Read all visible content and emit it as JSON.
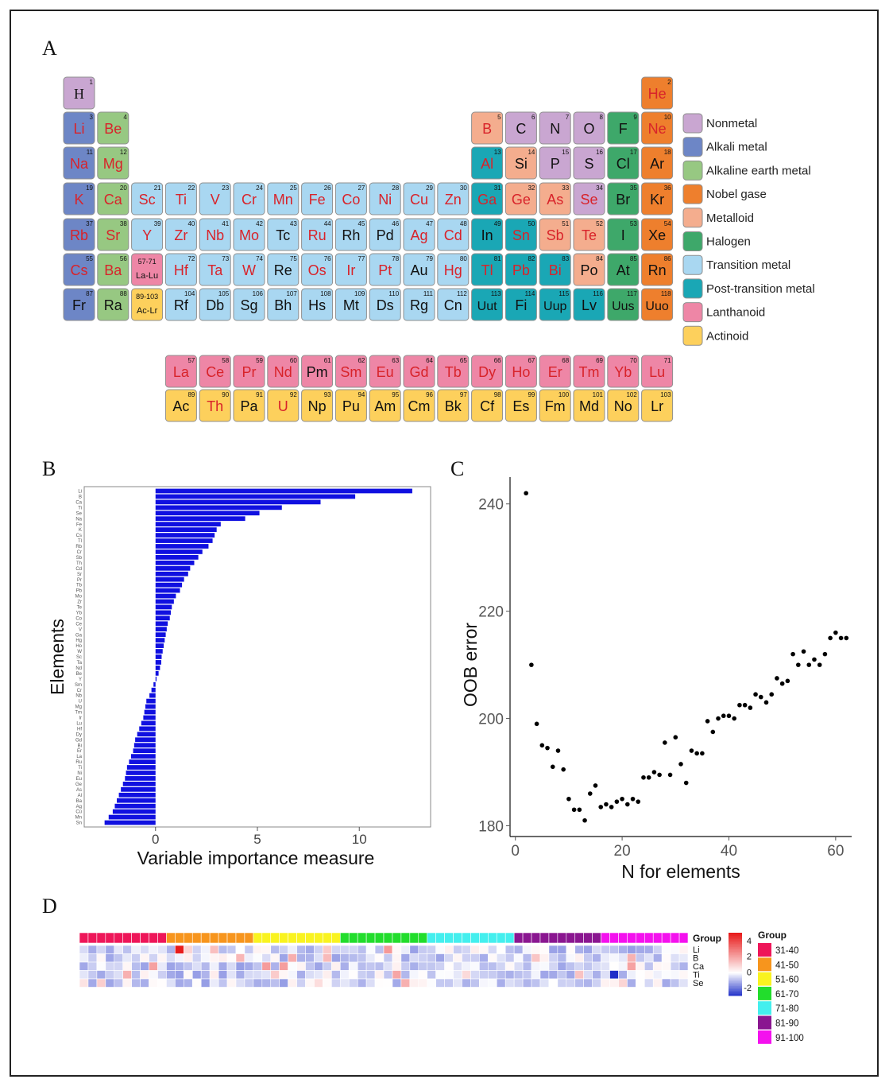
{
  "panels": {
    "a": "A",
    "b": "B",
    "c": "C",
    "d": "D"
  },
  "periodic_table": {
    "categories": [
      {
        "key": "nonmetal",
        "label": "Nonmetal",
        "color": "#c9a6d1"
      },
      {
        "key": "alkali",
        "label": "Alkali metal",
        "color": "#6d86c6"
      },
      {
        "key": "alkaline",
        "label": "Alkaline earth metal",
        "color": "#97c882"
      },
      {
        "key": "noble",
        "label": "Nobel gase",
        "color": "#ee7f2d"
      },
      {
        "key": "metalloid",
        "label": "Metalloid",
        "color": "#f4ad8e"
      },
      {
        "key": "halogen",
        "label": "Halogen",
        "color": "#3ea86a"
      },
      {
        "key": "transition",
        "label": "Transition metal",
        "color": "#a9d7f1"
      },
      {
        "key": "post",
        "label": "Post-transition metal",
        "color": "#1aa7b5"
      },
      {
        "key": "lanthanoid",
        "label": "Lanthanoid",
        "color": "#ee86a6"
      },
      {
        "key": "actinoid",
        "label": "Actinoid",
        "color": "#fdd05c"
      }
    ],
    "colors": {
      "nonmetal": "#c9a6d1",
      "alkali": "#6d86c6",
      "alkaline": "#97c882",
      "noble": "#ee7f2d",
      "metalloid": "#f4ad8e",
      "halogen": "#3ea86a",
      "transition": "#a9d7f1",
      "post": "#1aa7b5",
      "lanthanoid": "#ee86a6",
      "actinoid": "#fdd05c"
    },
    "elements": [
      [
        "H",
        "1",
        1,
        1,
        "nonmetal",
        0
      ],
      [
        "He",
        "2",
        1,
        18,
        "noble",
        1
      ],
      [
        "Li",
        "3",
        2,
        1,
        "alkali",
        1
      ],
      [
        "Be",
        "4",
        2,
        2,
        "alkaline",
        1
      ],
      [
        "B",
        "5",
        2,
        13,
        "metalloid",
        1
      ],
      [
        "C",
        "6",
        2,
        14,
        "nonmetal",
        0
      ],
      [
        "N",
        "7",
        2,
        15,
        "nonmetal",
        0
      ],
      [
        "O",
        "8",
        2,
        16,
        "nonmetal",
        0
      ],
      [
        "F",
        "9",
        2,
        17,
        "halogen",
        0
      ],
      [
        "Ne",
        "10",
        2,
        18,
        "noble",
        1
      ],
      [
        "Na",
        "11",
        3,
        1,
        "alkali",
        1
      ],
      [
        "Mg",
        "12",
        3,
        2,
        "alkaline",
        1
      ],
      [
        "Al",
        "13",
        3,
        13,
        "post",
        1
      ],
      [
        "Si",
        "14",
        3,
        14,
        "metalloid",
        0
      ],
      [
        "P",
        "15",
        3,
        15,
        "nonmetal",
        0
      ],
      [
        "S",
        "16",
        3,
        16,
        "nonmetal",
        0
      ],
      [
        "Cl",
        "17",
        3,
        17,
        "halogen",
        0
      ],
      [
        "Ar",
        "18",
        3,
        18,
        "noble",
        0
      ],
      [
        "K",
        "19",
        4,
        1,
        "alkali",
        1
      ],
      [
        "Ca",
        "20",
        4,
        2,
        "alkaline",
        1
      ],
      [
        "Sc",
        "21",
        4,
        3,
        "transition",
        1
      ],
      [
        "Ti",
        "22",
        4,
        4,
        "transition",
        1
      ],
      [
        "V",
        "23",
        4,
        5,
        "transition",
        1
      ],
      [
        "Cr",
        "24",
        4,
        6,
        "transition",
        1
      ],
      [
        "Mn",
        "25",
        4,
        7,
        "transition",
        1
      ],
      [
        "Fe",
        "26",
        4,
        8,
        "transition",
        1
      ],
      [
        "Co",
        "27",
        4,
        9,
        "transition",
        1
      ],
      [
        "Ni",
        "28",
        4,
        10,
        "transition",
        1
      ],
      [
        "Cu",
        "29",
        4,
        11,
        "transition",
        1
      ],
      [
        "Zn",
        "30",
        4,
        12,
        "transition",
        1
      ],
      [
        "Ga",
        "31",
        4,
        13,
        "post",
        1
      ],
      [
        "Ge",
        "32",
        4,
        14,
        "metalloid",
        1
      ],
      [
        "As",
        "33",
        4,
        15,
        "metalloid",
        1
      ],
      [
        "Se",
        "34",
        4,
        16,
        "nonmetal",
        1
      ],
      [
        "Br",
        "35",
        4,
        17,
        "halogen",
        0
      ],
      [
        "Kr",
        "36",
        4,
        18,
        "noble",
        0
      ],
      [
        "Rb",
        "37",
        5,
        1,
        "alkali",
        1
      ],
      [
        "Sr",
        "38",
        5,
        2,
        "alkaline",
        1
      ],
      [
        "Y",
        "39",
        5,
        3,
        "transition",
        1
      ],
      [
        "Zr",
        "40",
        5,
        4,
        "transition",
        1
      ],
      [
        "Nb",
        "41",
        5,
        5,
        "transition",
        1
      ],
      [
        "Mo",
        "42",
        5,
        6,
        "transition",
        1
      ],
      [
        "Tc",
        "43",
        5,
        7,
        "transition",
        0
      ],
      [
        "Ru",
        "44",
        5,
        8,
        "transition",
        1
      ],
      [
        "Rh",
        "45",
        5,
        9,
        "transition",
        0
      ],
      [
        "Pd",
        "46",
        5,
        10,
        "transition",
        0
      ],
      [
        "Ag",
        "47",
        5,
        11,
        "transition",
        1
      ],
      [
        "Cd",
        "48",
        5,
        12,
        "transition",
        1
      ],
      [
        "In",
        "49",
        5,
        13,
        "post",
        0
      ],
      [
        "Sn",
        "50",
        5,
        14,
        "post",
        1
      ],
      [
        "Sb",
        "51",
        5,
        15,
        "metalloid",
        1
      ],
      [
        "Te",
        "52",
        5,
        16,
        "metalloid",
        1
      ],
      [
        "I",
        "53",
        5,
        17,
        "halogen",
        0
      ],
      [
        "Xe",
        "54",
        5,
        18,
        "noble",
        0
      ],
      [
        "Cs",
        "55",
        6,
        1,
        "alkali",
        1
      ],
      [
        "Ba",
        "56",
        6,
        2,
        "alkaline",
        1
      ],
      [
        "La-Lu",
        "57-71",
        6,
        3,
        "lanthanoid",
        0
      ],
      [
        "Hf",
        "72",
        6,
        4,
        "transition",
        1
      ],
      [
        "Ta",
        "73",
        6,
        5,
        "transition",
        1
      ],
      [
        "W",
        "74",
        6,
        6,
        "transition",
        1
      ],
      [
        "Re",
        "75",
        6,
        7,
        "transition",
        0
      ],
      [
        "Os",
        "76",
        6,
        8,
        "transition",
        1
      ],
      [
        "Ir",
        "77",
        6,
        9,
        "transition",
        1
      ],
      [
        "Pt",
        "78",
        6,
        10,
        "transition",
        1
      ],
      [
        "Au",
        "79",
        6,
        11,
        "transition",
        0
      ],
      [
        "Hg",
        "80",
        6,
        12,
        "transition",
        1
      ],
      [
        "Tl",
        "81",
        6,
        13,
        "post",
        1
      ],
      [
        "Pb",
        "82",
        6,
        14,
        "post",
        1
      ],
      [
        "Bi",
        "83",
        6,
        15,
        "post",
        1
      ],
      [
        "Po",
        "84",
        6,
        16,
        "metalloid",
        0
      ],
      [
        "At",
        "85",
        6,
        17,
        "halogen",
        0
      ],
      [
        "Rn",
        "86",
        6,
        18,
        "noble",
        0
      ],
      [
        "Fr",
        "87",
        7,
        1,
        "alkali",
        0
      ],
      [
        "Ra",
        "88",
        7,
        2,
        "alkaline",
        0
      ],
      [
        "Ac-Lr",
        "89-103",
        7,
        3,
        "actinoid",
        0
      ],
      [
        "Rf",
        "104",
        7,
        4,
        "transition",
        0
      ],
      [
        "Db",
        "105",
        7,
        5,
        "transition",
        0
      ],
      [
        "Sg",
        "106",
        7,
        6,
        "transition",
        0
      ],
      [
        "Bh",
        "107",
        7,
        7,
        "transition",
        0
      ],
      [
        "Hs",
        "108",
        7,
        8,
        "transition",
        0
      ],
      [
        "Mt",
        "109",
        7,
        9,
        "transition",
        0
      ],
      [
        "Ds",
        "110",
        7,
        10,
        "transition",
        0
      ],
      [
        "Rg",
        "111",
        7,
        11,
        "transition",
        0
      ],
      [
        "Cn",
        "112",
        7,
        12,
        "transition",
        0
      ],
      [
        "Uut",
        "113",
        7,
        13,
        "post",
        0
      ],
      [
        "Fi",
        "114",
        7,
        14,
        "post",
        0
      ],
      [
        "Uup",
        "115",
        7,
        15,
        "post",
        0
      ],
      [
        "Lv",
        "116",
        7,
        16,
        "post",
        0
      ],
      [
        "Uus",
        "117",
        7,
        17,
        "halogen",
        0
      ],
      [
        "Uuo",
        "118",
        7,
        18,
        "noble",
        0
      ],
      [
        "La",
        "57",
        8,
        4,
        "lanthanoid",
        1
      ],
      [
        "Ce",
        "58",
        8,
        5,
        "lanthanoid",
        1
      ],
      [
        "Pr",
        "59",
        8,
        6,
        "lanthanoid",
        1
      ],
      [
        "Nd",
        "60",
        8,
        7,
        "lanthanoid",
        1
      ],
      [
        "Pm",
        "61",
        8,
        8,
        "lanthanoid",
        0
      ],
      [
        "Sm",
        "62",
        8,
        9,
        "lanthanoid",
        1
      ],
      [
        "Eu",
        "63",
        8,
        10,
        "lanthanoid",
        1
      ],
      [
        "Gd",
        "64",
        8,
        11,
        "lanthanoid",
        1
      ],
      [
        "Tb",
        "65",
        8,
        12,
        "lanthanoid",
        1
      ],
      [
        "Dy",
        "66",
        8,
        13,
        "lanthanoid",
        1
      ],
      [
        "Ho",
        "67",
        8,
        14,
        "lanthanoid",
        1
      ],
      [
        "Er",
        "68",
        8,
        15,
        "lanthanoid",
        1
      ],
      [
        "Tm",
        "69",
        8,
        16,
        "lanthanoid",
        1
      ],
      [
        "Yb",
        "70",
        8,
        17,
        "lanthanoid",
        1
      ],
      [
        "Lu",
        "71",
        8,
        18,
        "lanthanoid",
        1
      ],
      [
        "Ac",
        "89",
        9,
        4,
        "actinoid",
        0
      ],
      [
        "Th",
        "90",
        9,
        5,
        "actinoid",
        1
      ],
      [
        "Pa",
        "91",
        9,
        6,
        "actinoid",
        0
      ],
      [
        "U",
        "92",
        9,
        7,
        "actinoid",
        1
      ],
      [
        "Np",
        "93",
        9,
        8,
        "actinoid",
        0
      ],
      [
        "Pu",
        "94",
        9,
        9,
        "actinoid",
        0
      ],
      [
        "Am",
        "95",
        9,
        10,
        "actinoid",
        0
      ],
      [
        "Cm",
        "96",
        9,
        11,
        "actinoid",
        0
      ],
      [
        "Bk",
        "97",
        9,
        12,
        "actinoid",
        0
      ],
      [
        "Cf",
        "98",
        9,
        13,
        "actinoid",
        0
      ],
      [
        "Es",
        "99",
        9,
        14,
        "actinoid",
        0
      ],
      [
        "Fm",
        "100",
        9,
        15,
        "actinoid",
        0
      ],
      [
        "Md",
        "101",
        9,
        16,
        "actinoid",
        0
      ],
      [
        "No",
        "102",
        9,
        17,
        "actinoid",
        0
      ],
      [
        "Lr",
        "103",
        9,
        18,
        "actinoid",
        0
      ]
    ]
  },
  "chart_data": [
    {
      "type": "bar",
      "orientation": "horizontal",
      "xlabel": "Variable importance measure",
      "ylabel": "Elements",
      "xlim": [
        -3.5,
        13.5
      ],
      "xticks": [
        0,
        5,
        10
      ],
      "bar_color": "#1010e0",
      "categories": [
        "Li",
        "B",
        "Ca",
        "Ti",
        "Se",
        "Na",
        "Fe",
        "K",
        "Cs",
        "Tl",
        "Rb",
        "Cr",
        "Sb",
        "Th",
        "Cd",
        "Sr",
        "Pr",
        "Tb",
        "Pb",
        "Mo",
        "Zr",
        "Te",
        "Yb",
        "Co",
        "Ce",
        "V",
        "Ga",
        "Hg",
        "Ho",
        "W",
        "Sc",
        "Ta",
        "Nd",
        "Be",
        "Y",
        "Sm",
        "Cr",
        "Nb",
        "U",
        "Mg",
        "Tm",
        "Ir",
        "Lu",
        "Hf",
        "Dy",
        "Gd",
        "Bi",
        "Er",
        "La",
        "Ru",
        "Ti",
        "Ni",
        "Eu",
        "Ge",
        "As",
        "Al",
        "Ba",
        "Ag",
        "Cu",
        "Mn",
        "Sn"
      ],
      "values": [
        12.6,
        9.8,
        8.1,
        6.2,
        5.1,
        4.4,
        3.2,
        3.0,
        2.9,
        2.8,
        2.6,
        2.3,
        2.1,
        1.9,
        1.7,
        1.6,
        1.4,
        1.3,
        1.2,
        1.0,
        0.9,
        0.8,
        0.75,
        0.7,
        0.6,
        0.55,
        0.5,
        0.45,
        0.4,
        0.35,
        0.3,
        0.28,
        0.22,
        0.15,
        0.05,
        -0.1,
        -0.2,
        -0.3,
        -0.45,
        -0.5,
        -0.55,
        -0.6,
        -0.7,
        -0.8,
        -0.9,
        -1.0,
        -1.05,
        -1.1,
        -1.2,
        -1.3,
        -1.4,
        -1.45,
        -1.5,
        -1.6,
        -1.7,
        -1.8,
        -1.9,
        -2.0,
        -2.1,
        -2.3,
        -2.5
      ]
    },
    {
      "type": "scatter",
      "xlabel": "N for elements",
      "ylabel": "OOB error",
      "xlim": [
        -1,
        63
      ],
      "ylim": [
        178,
        245
      ],
      "xticks": [
        0,
        20,
        40,
        60
      ],
      "yticks": [
        180,
        200,
        220,
        240
      ],
      "x": [
        2,
        3,
        4,
        5,
        6,
        7,
        8,
        9,
        10,
        11,
        12,
        13,
        14,
        15,
        16,
        17,
        18,
        19,
        20,
        21,
        22,
        23,
        24,
        25,
        26,
        27,
        28,
        29,
        30,
        31,
        32,
        33,
        34,
        35,
        36,
        37,
        38,
        39,
        40,
        41,
        42,
        43,
        44,
        45,
        46,
        47,
        48,
        49,
        50,
        51,
        52,
        53,
        54,
        55,
        56,
        57,
        58,
        59,
        60,
        61,
        62
      ],
      "y": [
        242,
        210,
        199,
        195,
        194.5,
        191,
        194,
        190.5,
        185,
        183,
        183,
        181,
        186,
        187.5,
        183.5,
        184,
        183.5,
        184.5,
        185,
        184,
        185,
        184.5,
        189,
        189,
        190,
        189.5,
        195.5,
        189.5,
        196.5,
        191.5,
        188,
        194,
        193.5,
        193.5,
        199.5,
        197.5,
        200,
        200.5,
        200.5,
        200,
        202.5,
        202.5,
        202,
        204.5,
        204,
        203,
        204.5,
        207.5,
        206.5,
        207,
        212,
        210,
        212.5,
        210,
        211,
        210,
        212,
        215,
        216,
        215,
        215
      ]
    },
    {
      "type": "heatmap",
      "rows": [
        "Li",
        "B",
        "Ca",
        "Ti",
        "Se"
      ],
      "n_columns": 70,
      "group_label": "Group",
      "groups": [
        {
          "label": "31-40",
          "color": "#ee1659",
          "count": 10
        },
        {
          "label": "41-50",
          "color": "#f7951d",
          "count": 10
        },
        {
          "label": "51-60",
          "color": "#f9f320",
          "count": 10
        },
        {
          "label": "61-70",
          "color": "#22dd2c",
          "count": 10
        },
        {
          "label": "71-80",
          "color": "#44efee",
          "count": 10
        },
        {
          "label": "81-90",
          "color": "#8a1690",
          "count": 10
        },
        {
          "label": "91-100",
          "color": "#f411ee",
          "count": 10
        }
      ],
      "scale": {
        "min": -3,
        "max": 5,
        "ticks": [
          4,
          2,
          0,
          -2
        ],
        "low_color": "#1e2ec8",
        "mid_color": "#ffffff",
        "high_color": "#e81c1c"
      }
    }
  ]
}
